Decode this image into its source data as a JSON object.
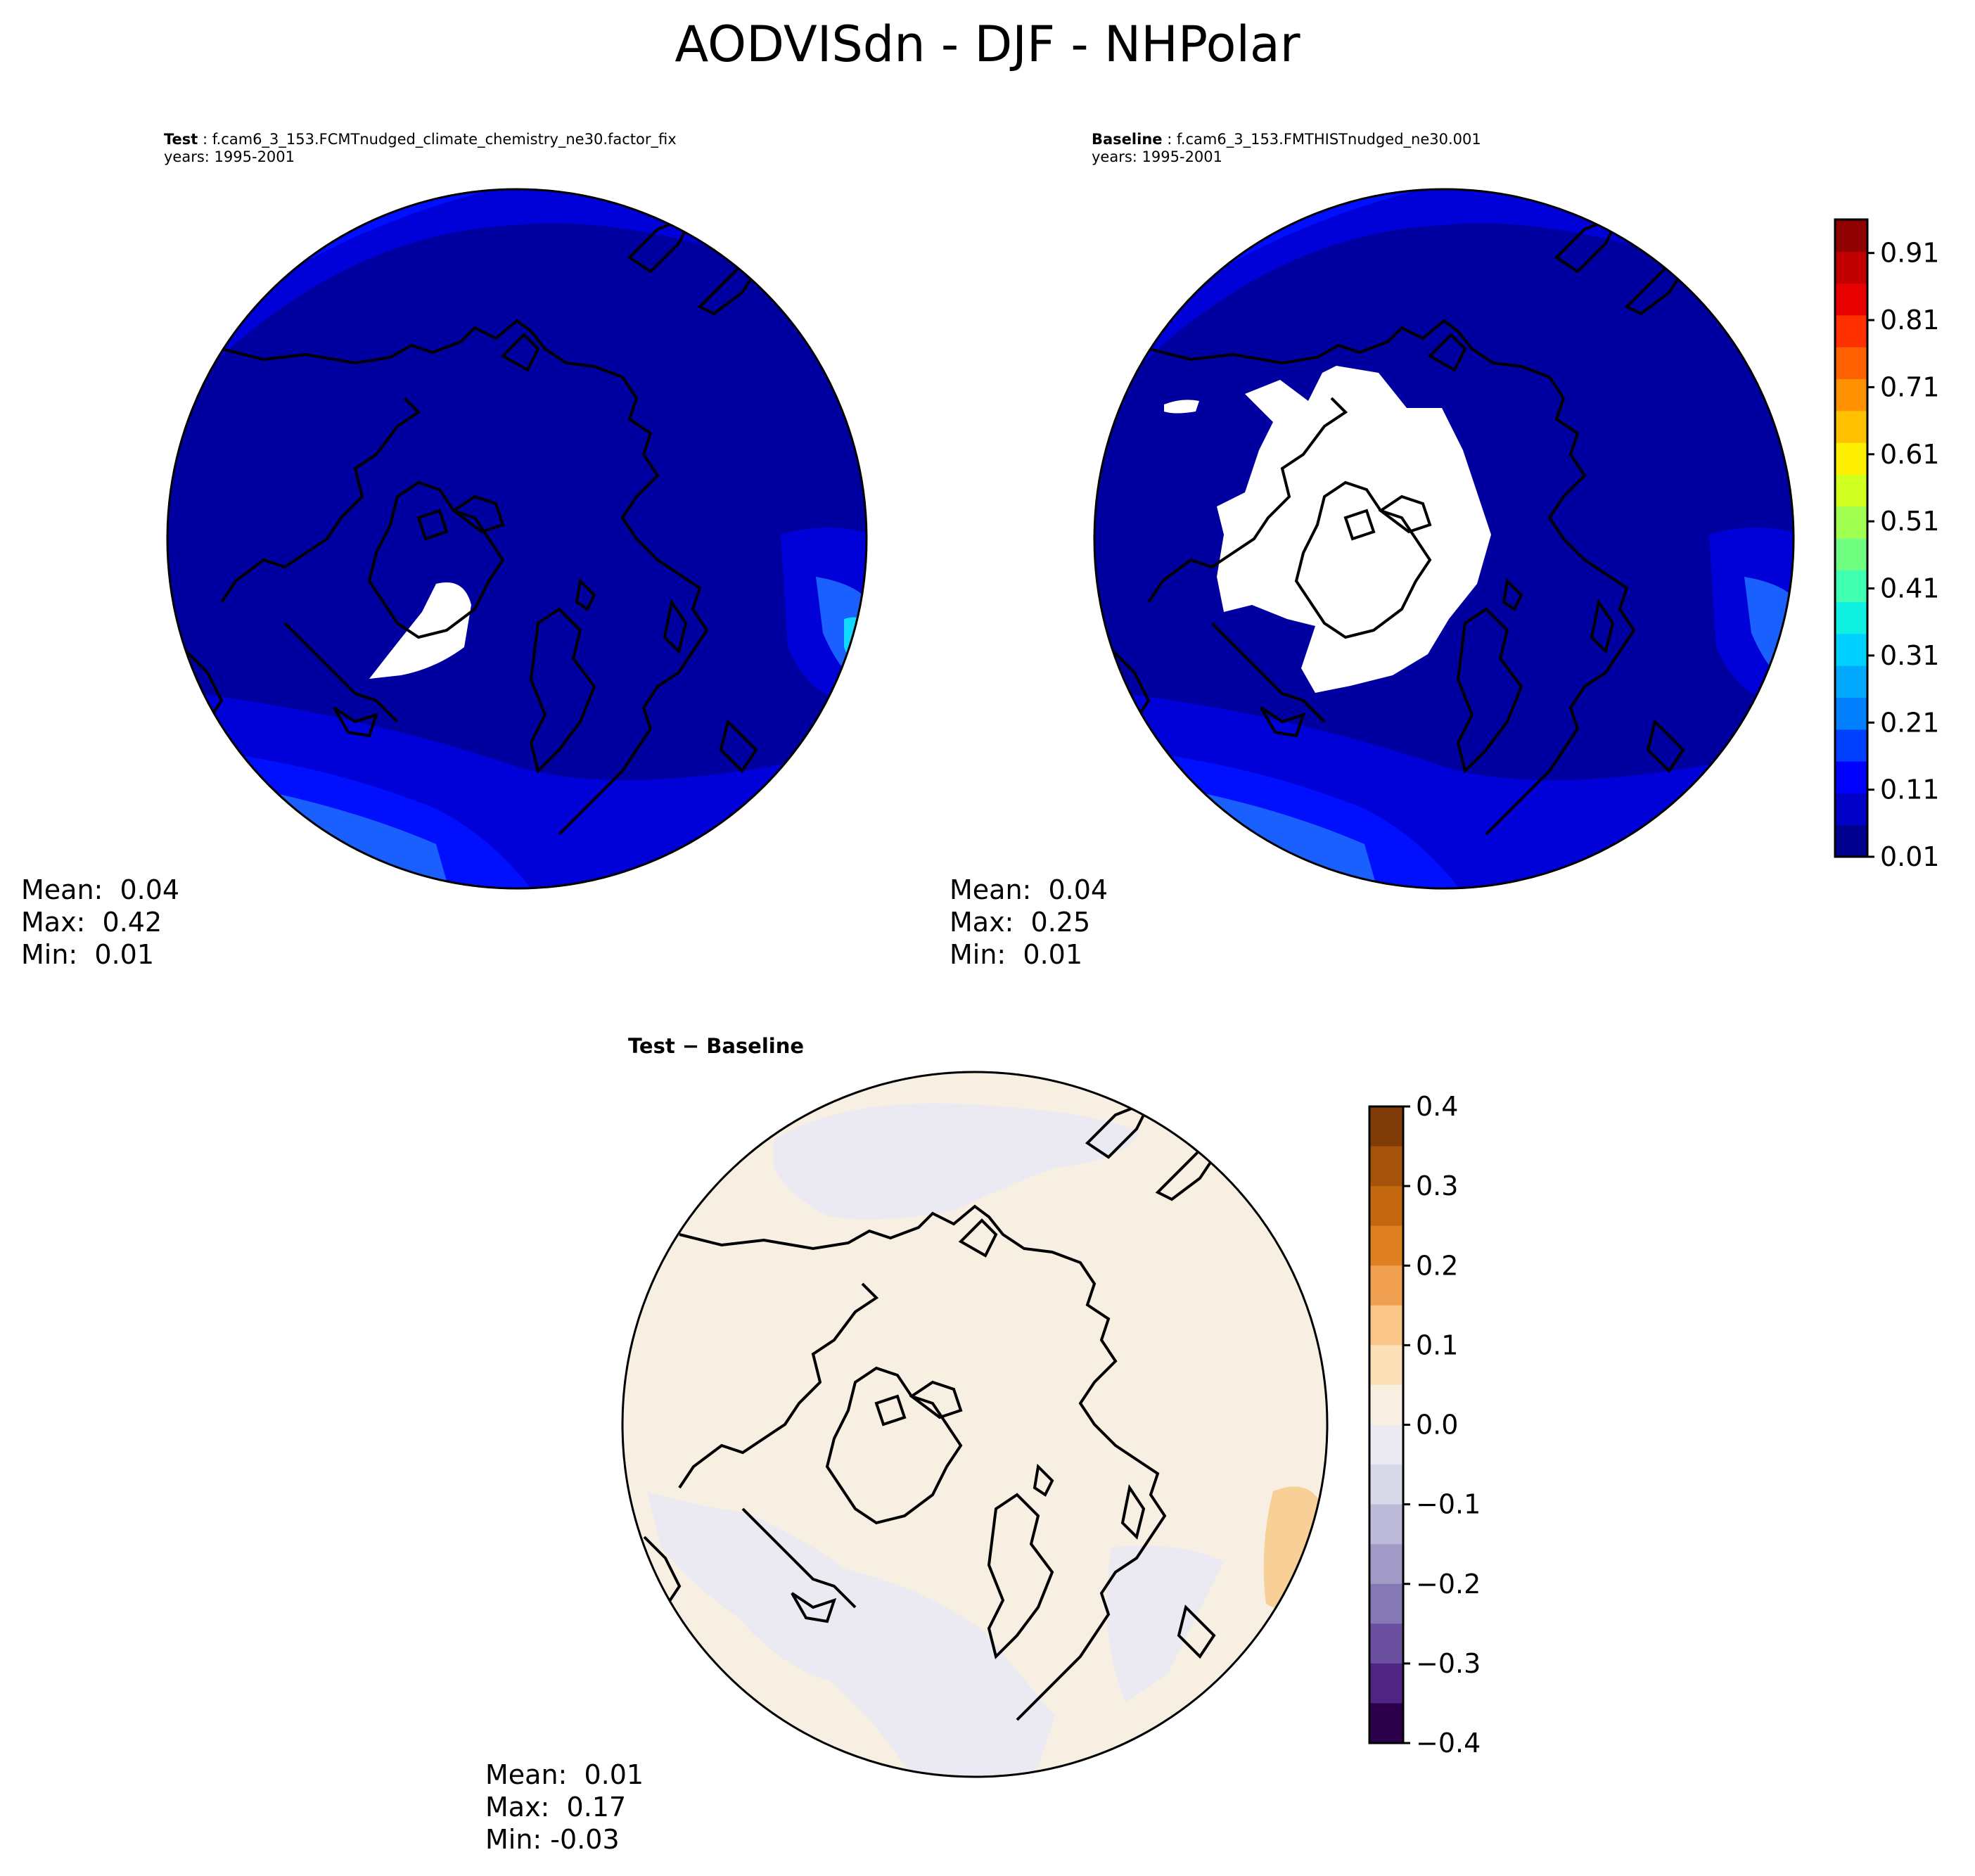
{
  "title": "AODVISdn - DJF - NHPolar",
  "panels": {
    "test": {
      "label": "Test",
      "case": "f.cam6_3_153.FCMTnudged_climate_chemistry_ne30.factor_fix",
      "years": "years: 1995-2001",
      "stats": {
        "mean": "Mean:  0.04",
        "max": "Max:  0.42",
        "min": "Min:  0.01"
      }
    },
    "baseline": {
      "label": "Baseline",
      "case": "f.cam6_3_153.FMTHISTnudged_ne30.001",
      "years": "years: 1995-2001",
      "stats": {
        "mean": "Mean:  0.04",
        "max": "Max:  0.25",
        "min": "Min:  0.01"
      }
    },
    "diff": {
      "label": "Test − Baseline",
      "stats": {
        "mean": "Mean:  0.01",
        "max": "Max:  0.17",
        "min": "Min: -0.03"
      }
    }
  },
  "colorbar_main": {
    "ticks": [
      "0.01",
      "0.11",
      "0.21",
      "0.31",
      "0.41",
      "0.51",
      "0.61",
      "0.71",
      "0.81",
      "0.91"
    ],
    "range": [
      0.01,
      0.96
    ],
    "colors": [
      "#00008f",
      "#0000c8",
      "#0000ff",
      "#0040ff",
      "#0080ff",
      "#00a8ff",
      "#00d0ff",
      "#10f0e0",
      "#40ffb0",
      "#70ff80",
      "#a0ff50",
      "#d0ff20",
      "#ffef00",
      "#ffc000",
      "#ff9000",
      "#ff6000",
      "#ff3000",
      "#e80000",
      "#c00000",
      "#8f0000"
    ]
  },
  "colorbar_diff": {
    "ticks": [
      "0.4",
      "0.3",
      "0.2",
      "0.1",
      "0.0",
      "−0.1",
      "−0.2",
      "−0.3",
      "−0.4"
    ],
    "range": [
      -0.4,
      0.4
    ],
    "colors": [
      "#7f3b08",
      "#a5520a",
      "#c4680f",
      "#de8020",
      "#f0a050",
      "#f9c588",
      "#fde0b8",
      "#f7efe2",
      "#ebeaf2",
      "#d7d8e8",
      "#bdb9d9",
      "#a29bc8",
      "#8579b5",
      "#6a509e",
      "#4f2584",
      "#2d004b"
    ]
  },
  "map_colors": {
    "deep": "#0000a0",
    "mid": "#0000d8",
    "bright": "#0010ff",
    "light": "#1a60ff",
    "cyan": "#10d8ff",
    "diff_pos": "#f7efe2",
    "diff_neg": "#ebeaf2",
    "diff_orange": "#f9cf98"
  }
}
